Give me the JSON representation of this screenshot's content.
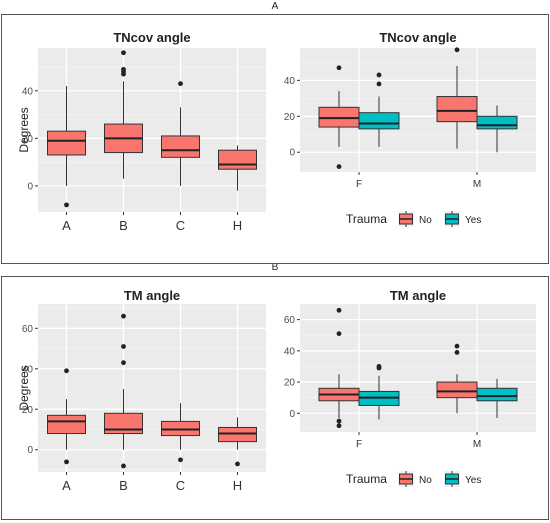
{
  "figure": {
    "panel_labels": [
      "A",
      "B"
    ],
    "colors": {
      "fill_no": "#f8766d",
      "fill_yes": "#00bfc4",
      "panel_bg": "#ebebeb",
      "grid": "#ffffff",
      "frame": "#555555",
      "text": "#222222"
    }
  },
  "chart_data": [
    {
      "id": "a_left",
      "type": "boxplot",
      "title": "TNcov angle",
      "ylabel": "Degrees",
      "categories": [
        "A",
        "B",
        "C",
        "H"
      ],
      "yticks": [
        0,
        20,
        40
      ],
      "ylim": [
        -11,
        58
      ],
      "grid": true,
      "boxes": [
        {
          "cat": "A",
          "min": 0,
          "q1": 13,
          "median": 19,
          "q3": 23,
          "max": 42,
          "outliers": [
            -8
          ],
          "fill": "no"
        },
        {
          "cat": "B",
          "min": 3,
          "q1": 14,
          "median": 20,
          "q3": 26,
          "max": 44,
          "outliers": [
            47,
            48,
            49,
            56
          ],
          "fill": "no"
        },
        {
          "cat": "C",
          "min": 0,
          "q1": 12,
          "median": 15,
          "q3": 21,
          "max": 33,
          "outliers": [
            43
          ],
          "fill": "no"
        },
        {
          "cat": "H",
          "min": -2,
          "q1": 7,
          "median": 9,
          "q3": 15,
          "max": 17,
          "outliers": [],
          "fill": "no"
        }
      ]
    },
    {
      "id": "a_right",
      "type": "boxplot",
      "title": "TNcov angle",
      "ylabel": "",
      "categories": [
        "F",
        "M"
      ],
      "yticks": [
        0,
        20,
        40
      ],
      "ylim": [
        -11,
        58
      ],
      "grid": true,
      "legend": {
        "title": "Trauma",
        "placement": "bottom",
        "entries": [
          {
            "label": "No",
            "fill": "no"
          },
          {
            "label": "Yes",
            "fill": "yes"
          }
        ]
      },
      "boxes": [
        {
          "cat": "F",
          "group": "No",
          "min": 3,
          "q1": 14,
          "median": 19,
          "q3": 25,
          "max": 34,
          "outliers": [
            47,
            -8
          ],
          "fill": "no"
        },
        {
          "cat": "F",
          "group": "Yes",
          "min": 3,
          "q1": 13,
          "median": 16,
          "q3": 22,
          "max": 31,
          "outliers": [
            43,
            38
          ],
          "fill": "yes"
        },
        {
          "cat": "M",
          "group": "No",
          "min": 2,
          "q1": 17,
          "median": 23,
          "q3": 31,
          "max": 48,
          "outliers": [
            57
          ],
          "fill": "no"
        },
        {
          "cat": "M",
          "group": "Yes",
          "min": 0,
          "q1": 13,
          "median": 15,
          "q3": 20,
          "max": 26,
          "outliers": [],
          "fill": "yes"
        }
      ]
    },
    {
      "id": "b_left",
      "type": "boxplot",
      "title": "TM angle",
      "ylabel": "Degrees",
      "categories": [
        "A",
        "B",
        "C",
        "H"
      ],
      "yticks": [
        0,
        20,
        40,
        60
      ],
      "ylim": [
        -11,
        72
      ],
      "grid": true,
      "boxes": [
        {
          "cat": "A",
          "min": 0,
          "q1": 8,
          "median": 14,
          "q3": 17,
          "max": 25,
          "outliers": [
            39,
            -6
          ],
          "fill": "no"
        },
        {
          "cat": "B",
          "min": 0,
          "q1": 8,
          "median": 10,
          "q3": 18,
          "max": 30,
          "outliers": [
            43,
            51,
            66,
            -8
          ],
          "fill": "no"
        },
        {
          "cat": "C",
          "min": 0,
          "q1": 7,
          "median": 10,
          "q3": 14,
          "max": 23,
          "outliers": [
            -5
          ],
          "fill": "no"
        },
        {
          "cat": "H",
          "min": 0,
          "q1": 4,
          "median": 8,
          "q3": 11,
          "max": 16,
          "outliers": [
            -7
          ],
          "fill": "no"
        }
      ]
    },
    {
      "id": "b_right",
      "type": "boxplot",
      "title": "TM angle",
      "ylabel": "",
      "categories": [
        "F",
        "M"
      ],
      "yticks": [
        0,
        20,
        40,
        60
      ],
      "ylim": [
        -12,
        70
      ],
      "grid": true,
      "legend": {
        "title": "Trauma",
        "placement": "bottom",
        "entries": [
          {
            "label": "No",
            "fill": "no"
          },
          {
            "label": "Yes",
            "fill": "yes"
          }
        ]
      },
      "boxes": [
        {
          "cat": "F",
          "group": "No",
          "min": -3,
          "q1": 8,
          "median": 12,
          "q3": 16,
          "max": 25,
          "outliers": [
            66,
            51,
            -5,
            -8
          ],
          "fill": "no"
        },
        {
          "cat": "F",
          "group": "Yes",
          "min": -4,
          "q1": 5,
          "median": 10,
          "q3": 14,
          "max": 24,
          "outliers": [
            29,
            30
          ],
          "fill": "yes"
        },
        {
          "cat": "M",
          "group": "No",
          "min": 0,
          "q1": 10,
          "median": 14,
          "q3": 20,
          "max": 25,
          "outliers": [
            39,
            43
          ],
          "fill": "no"
        },
        {
          "cat": "M",
          "group": "Yes",
          "min": -3,
          "q1": 8,
          "median": 11,
          "q3": 16,
          "max": 22,
          "outliers": [],
          "fill": "yes"
        }
      ]
    }
  ]
}
